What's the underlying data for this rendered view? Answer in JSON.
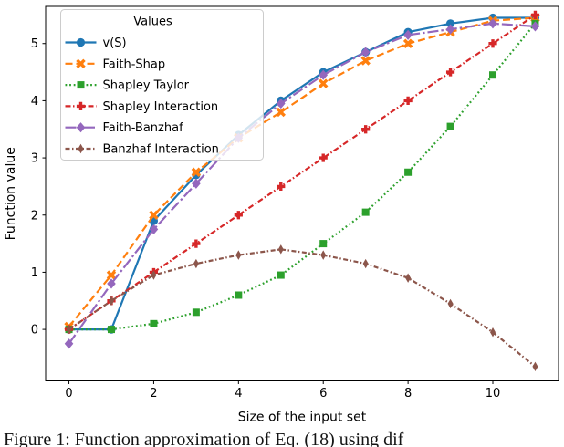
{
  "figure": {
    "caption": "Figure 1: Function approximation of Eq. (18) using dif",
    "background": "#ffffff"
  },
  "chart_data": {
    "type": "line",
    "title": "",
    "xlabel": "Size of the input set",
    "ylabel": "Function value",
    "xlim": [
      -0.55,
      11.55
    ],
    "ylim": [
      -0.9,
      5.65
    ],
    "xticks": [
      0,
      2,
      4,
      6,
      8,
      10
    ],
    "yticks": [
      0,
      1,
      2,
      3,
      4,
      5
    ],
    "grid": false,
    "legend": {
      "title": "Values",
      "position": "upper left"
    },
    "x": [
      0,
      1,
      2,
      3,
      4,
      5,
      6,
      7,
      8,
      9,
      10,
      11
    ],
    "series": [
      {
        "name": "v(S)",
        "color": "#1f77b4",
        "linestyle": "solid",
        "marker": "circle",
        "values": [
          0,
          0,
          1.9,
          2.7,
          3.4,
          4.0,
          4.5,
          4.85,
          5.2,
          5.35,
          5.45,
          5.45
        ]
      },
      {
        "name": "Faith-Shap",
        "color": "#ff7f0e",
        "linestyle": "dashed",
        "marker": "x-thick",
        "values": [
          0.05,
          0.95,
          2.0,
          2.75,
          3.35,
          3.8,
          4.3,
          4.7,
          5.0,
          5.2,
          5.4,
          5.45
        ]
      },
      {
        "name": "Shapley Taylor",
        "color": "#2ca02c",
        "linestyle": "dotted",
        "marker": "square",
        "values": [
          0,
          0,
          0.1,
          0.3,
          0.6,
          0.95,
          1.5,
          2.05,
          2.75,
          3.55,
          4.45,
          5.35
        ]
      },
      {
        "name": "Shapley Interaction",
        "color": "#d62728",
        "linestyle": "dashdot",
        "marker": "plus-thick",
        "values": [
          0,
          0.5,
          1.0,
          1.5,
          2.0,
          2.5,
          3.0,
          3.5,
          4.0,
          4.5,
          5.0,
          5.5
        ]
      },
      {
        "name": "Faith-Banzhaf",
        "color": "#9467bd",
        "linestyle": "dashdot-long",
        "marker": "diamond",
        "values": [
          -0.25,
          0.8,
          1.75,
          2.55,
          3.35,
          3.95,
          4.45,
          4.85,
          5.15,
          5.25,
          5.35,
          5.3
        ]
      },
      {
        "name": "Banzhaf Interaction",
        "color": "#8c564b",
        "linestyle": "dashdot-short",
        "marker": "thin-diamond",
        "values": [
          0,
          0.5,
          0.95,
          1.15,
          1.3,
          1.4,
          1.3,
          1.15,
          0.9,
          0.45,
          -0.05,
          -0.65
        ]
      }
    ]
  }
}
